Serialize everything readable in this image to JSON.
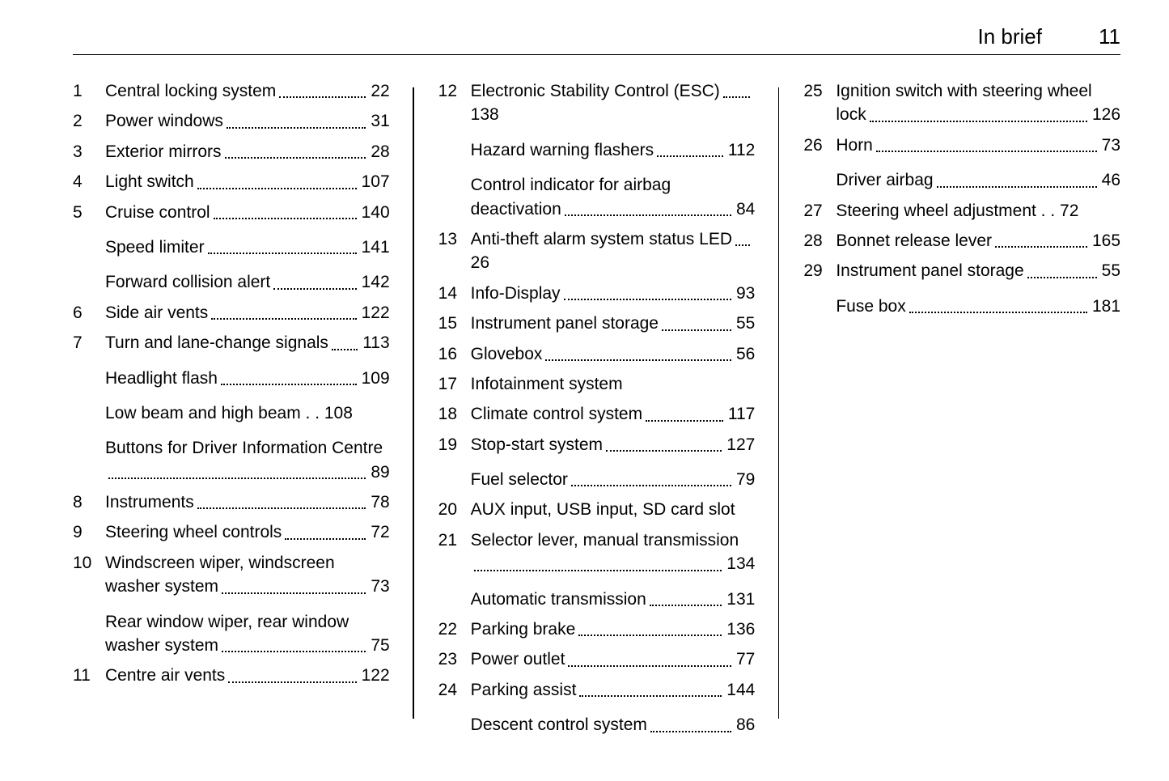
{
  "header": {
    "section_title": "In brief",
    "page_number": "11"
  },
  "columns": [
    {
      "entries": [
        {
          "num": "1",
          "label": "Central locking system",
          "page": "22"
        },
        {
          "num": "2",
          "label": "Power windows",
          "page": "31"
        },
        {
          "num": "3",
          "label": "Exterior mirrors",
          "page": "28"
        },
        {
          "num": "4",
          "label": "Light switch",
          "page": "107"
        },
        {
          "num": "5",
          "label": "Cruise control",
          "page": "140"
        },
        {
          "num": "",
          "label": "Speed limiter",
          "page": "141"
        },
        {
          "num": "",
          "label": "Forward collision alert",
          "page": "142"
        },
        {
          "num": "6",
          "label": "Side air vents",
          "page": "122"
        },
        {
          "num": "7",
          "label": "Turn and lane-change signals",
          "page": "113"
        },
        {
          "num": "",
          "label": "Headlight flash",
          "page": "109"
        },
        {
          "num": "",
          "label": "Low beam and high beam",
          "page": "108",
          "nodots": true
        },
        {
          "num": "",
          "label": "Buttons for Driver Information Centre",
          "page": "89"
        },
        {
          "num": "8",
          "label": "Instruments",
          "page": "78"
        },
        {
          "num": "9",
          "label": "Steering wheel controls",
          "page": "72"
        },
        {
          "num": "10",
          "label": "Windscreen wiper, windscreen washer system",
          "page": "73"
        },
        {
          "num": "",
          "label": "Rear window wiper, rear window washer system",
          "page": "75"
        },
        {
          "num": "11",
          "label": "Centre air vents",
          "page": "122"
        }
      ]
    },
    {
      "entries": [
        {
          "num": "12",
          "label": "Electronic Stability Control (ESC)",
          "page": "138"
        },
        {
          "num": "",
          "label": "Hazard warning flashers",
          "page": "112"
        },
        {
          "num": "",
          "label": "Control indicator for airbag deactivation",
          "page": "84"
        },
        {
          "num": "13",
          "label": "Anti-theft alarm system status LED",
          "page": "26"
        },
        {
          "num": "14",
          "label": "Info-Display",
          "page": "93"
        },
        {
          "num": "15",
          "label": "Instrument panel storage",
          "page": "55"
        },
        {
          "num": "16",
          "label": "Glovebox",
          "page": "56"
        },
        {
          "num": "17",
          "label": "Infotainment system",
          "page": ""
        },
        {
          "num": "18",
          "label": "Climate control system",
          "page": "117"
        },
        {
          "num": "19",
          "label": "Stop-start system",
          "page": "127"
        },
        {
          "num": "",
          "label": "Fuel selector",
          "page": "79"
        },
        {
          "num": "20",
          "label": "AUX input, USB input, SD card slot",
          "page": ""
        },
        {
          "num": "21",
          "label": "Selector lever, manual transmission",
          "page": "134"
        },
        {
          "num": "",
          "label": "Automatic transmission",
          "page": "131"
        },
        {
          "num": "22",
          "label": "Parking brake",
          "page": "136"
        },
        {
          "num": "23",
          "label": "Power outlet",
          "page": "77"
        },
        {
          "num": "24",
          "label": "Parking assist",
          "page": "144"
        },
        {
          "num": "",
          "label": "Descent control system",
          "page": "86"
        }
      ]
    },
    {
      "entries": [
        {
          "num": "25",
          "label": "Ignition switch with steering wheel lock",
          "page": "126"
        },
        {
          "num": "26",
          "label": "Horn",
          "page": "73"
        },
        {
          "num": "",
          "label": "Driver airbag",
          "page": "46"
        },
        {
          "num": "27",
          "label": "Steering wheel adjustment",
          "page": "72",
          "nodots": true
        },
        {
          "num": "28",
          "label": "Bonnet release lever",
          "page": "165"
        },
        {
          "num": "29",
          "label": "Instrument panel storage",
          "page": "55"
        },
        {
          "num": "",
          "label": "Fuse box",
          "page": "181"
        }
      ]
    }
  ]
}
